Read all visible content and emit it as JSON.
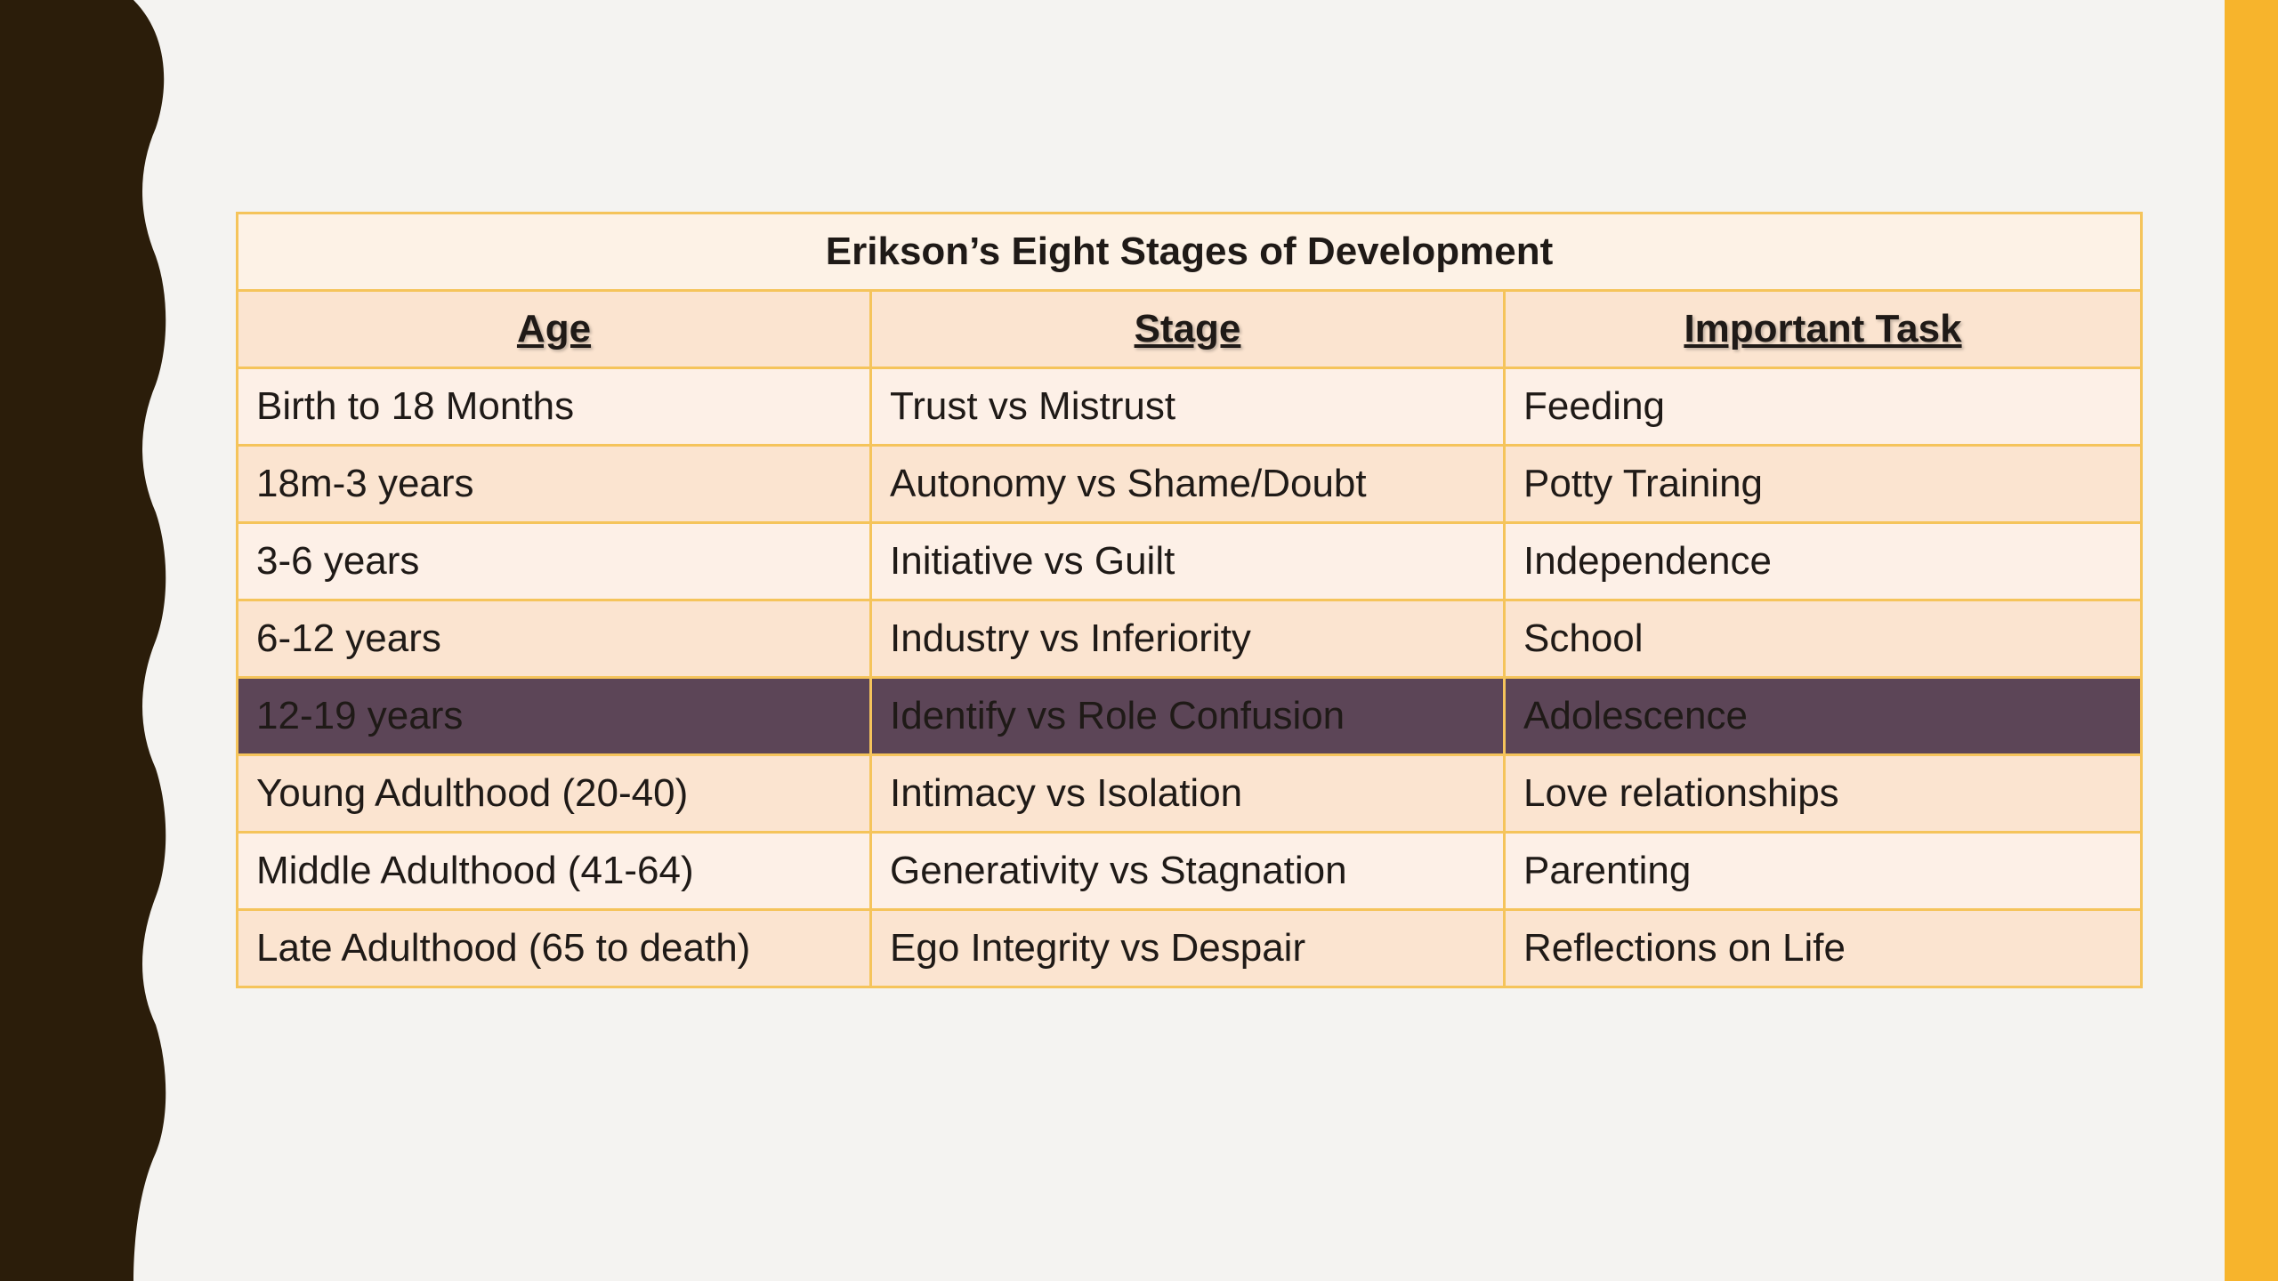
{
  "table": {
    "title": "Erikson’s Eight Stages of Development",
    "headers": [
      "Age",
      "Stage",
      "Important Task"
    ],
    "rows": [
      {
        "age": "Birth to 18 Months",
        "stage": "Trust vs Mistrust",
        "task": "Feeding"
      },
      {
        "age": "18m-3 years",
        "stage": "Autonomy vs Shame/Doubt",
        "task": "Potty Training"
      },
      {
        "age": "3-6 years",
        "stage": "Initiative vs Guilt",
        "task": "Independence"
      },
      {
        "age": "6-12 years",
        "stage": "Industry vs Inferiority",
        "task": "School"
      },
      {
        "age": "12-19 years",
        "stage": "Identify vs Role Confusion",
        "task": "Adolescence"
      },
      {
        "age": "Young Adulthood (20-40)",
        "stage": "Intimacy vs Isolation",
        "task": "Love relationships"
      },
      {
        "age": "Middle Adulthood (41-64)",
        "stage": "Generativity vs Stagnation",
        "task": "Parenting"
      },
      {
        "age": "Late Adulthood (65 to death)",
        "stage": "Ego Integrity vs Despair",
        "task": "Reflections on Life"
      }
    ],
    "highlighted_row": 4
  },
  "colors": {
    "background": "#f4f3f1",
    "left_wave": "#2b1d0a",
    "accent_bar": "#f7b42c",
    "table_border": "#f5c45b",
    "highlight_row": "#5c4557"
  }
}
